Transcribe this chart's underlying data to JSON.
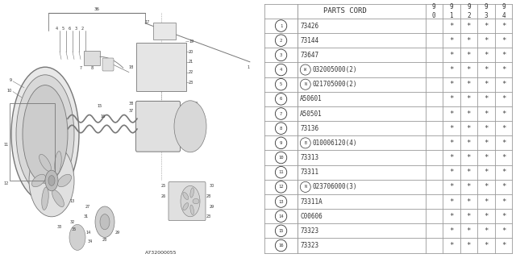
{
  "diagram_code": "A732000055",
  "bg_color": "#ffffff",
  "header_label": "PARTS CORD",
  "col_headers": [
    "9\n0",
    "9\n1",
    "9\n2",
    "9\n3",
    "9\n4"
  ],
  "rows": [
    {
      "num": "1",
      "prefix": "",
      "code": "73426",
      "stars": [
        false,
        true,
        true,
        true,
        true
      ]
    },
    {
      "num": "2",
      "prefix": "",
      "code": "73144",
      "stars": [
        false,
        true,
        true,
        true,
        true
      ]
    },
    {
      "num": "3",
      "prefix": "",
      "code": "73647",
      "stars": [
        false,
        true,
        true,
        true,
        true
      ]
    },
    {
      "num": "4",
      "prefix": "W",
      "code": "032005000(2)",
      "stars": [
        false,
        true,
        true,
        true,
        true
      ]
    },
    {
      "num": "5",
      "prefix": "N",
      "code": "021705000(2)",
      "stars": [
        false,
        true,
        true,
        true,
        true
      ]
    },
    {
      "num": "6",
      "prefix": "",
      "code": "A50601",
      "stars": [
        false,
        true,
        true,
        true,
        true
      ]
    },
    {
      "num": "7",
      "prefix": "",
      "code": "A50501",
      "stars": [
        false,
        true,
        true,
        true,
        true
      ]
    },
    {
      "num": "8",
      "prefix": "",
      "code": "73136",
      "stars": [
        false,
        true,
        true,
        true,
        true
      ]
    },
    {
      "num": "9",
      "prefix": "B",
      "code": "010006120(4)",
      "stars": [
        false,
        true,
        true,
        true,
        true
      ]
    },
    {
      "num": "10",
      "prefix": "",
      "code": "73313",
      "stars": [
        false,
        true,
        true,
        true,
        true
      ]
    },
    {
      "num": "11",
      "prefix": "",
      "code": "73311",
      "stars": [
        false,
        true,
        true,
        true,
        true
      ]
    },
    {
      "num": "12",
      "prefix": "N",
      "code": "023706000(3)",
      "stars": [
        false,
        true,
        true,
        true,
        true
      ]
    },
    {
      "num": "13",
      "prefix": "",
      "code": "73311A",
      "stars": [
        false,
        true,
        true,
        true,
        true
      ]
    },
    {
      "num": "14",
      "prefix": "",
      "code": "C00606",
      "stars": [
        false,
        true,
        true,
        true,
        true
      ]
    },
    {
      "num": "15",
      "prefix": "",
      "code": "73323",
      "stars": [
        false,
        true,
        true,
        true,
        true
      ]
    },
    {
      "num": "16",
      "prefix": "",
      "code": "73323",
      "stars": [
        false,
        true,
        true,
        true,
        true
      ]
    }
  ],
  "line_color": "#999999",
  "text_color": "#333333",
  "star_color": "#444444"
}
